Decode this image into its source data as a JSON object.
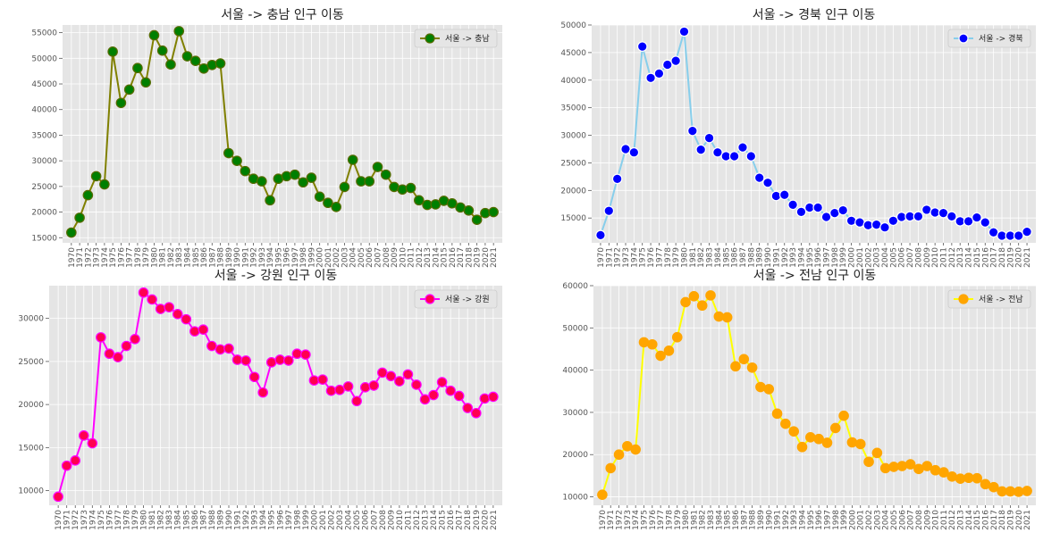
{
  "chart_data": [
    {
      "type": "line",
      "title": "서울 -> 충남 인구 이동",
      "legend": {
        "label": "서울 -> 충남",
        "placement": "top-right"
      },
      "line_color": "#808000",
      "marker_face": "#007f00",
      "marker_edge": "#556b00",
      "grid": true,
      "ylim": [
        14000,
        56500
      ],
      "yticks": [
        15000,
        20000,
        25000,
        30000,
        35000,
        40000,
        45000,
        50000,
        55000
      ],
      "x": [
        "1970",
        "1971",
        "1972",
        "1973",
        "1974",
        "1975",
        "1976",
        "1977",
        "1978",
        "1979",
        "1980",
        "1981",
        "1982",
        "1983",
        "1984",
        "1985",
        "1986",
        "1987",
        "1988",
        "1989",
        "1990",
        "1991",
        "1992",
        "1993",
        "1994",
        "1995",
        "1996",
        "1997",
        "1998",
        "1999",
        "2000",
        "2001",
        "2002",
        "2003",
        "2004",
        "2005",
        "2006",
        "2007",
        "2008",
        "2009",
        "2010",
        "2011",
        "2012",
        "2013",
        "2014",
        "2015",
        "2016",
        "2017",
        "2018",
        "2019",
        "2020",
        "2021"
      ],
      "values": [
        16000,
        18900,
        23300,
        27000,
        25400,
        51300,
        41300,
        43900,
        48100,
        45300,
        54500,
        51500,
        48800,
        55300,
        50400,
        49500,
        48000,
        48700,
        49000,
        31500,
        30000,
        28000,
        26500,
        26000,
        22300,
        26500,
        27000,
        27300,
        25800,
        26700,
        23000,
        21800,
        21000,
        24900,
        30200,
        26000,
        26000,
        28800,
        27300,
        24900,
        24400,
        24700,
        22300,
        21400,
        21500,
        22200,
        21700,
        20900,
        20300,
        18500,
        19800,
        20000
      ]
    },
    {
      "type": "line",
      "title": "서울 -> 경북 인구 이동",
      "legend": {
        "label": "서울 -> 경북",
        "placement": "top-right"
      },
      "line_color": "#87ceeb",
      "marker_face": "#0000ff",
      "marker_edge": "#ffffff",
      "grid": true,
      "ylim": [
        10500,
        50000
      ],
      "yticks": [
        15000,
        20000,
        25000,
        30000,
        35000,
        40000,
        45000,
        50000
      ],
      "x": [
        "1970",
        "1971",
        "1972",
        "1973",
        "1974",
        "1975",
        "1976",
        "1977",
        "1978",
        "1979",
        "1980",
        "1981",
        "1982",
        "1983",
        "1984",
        "1985",
        "1986",
        "1987",
        "1988",
        "1989",
        "1990",
        "1991",
        "1992",
        "1993",
        "1994",
        "1995",
        "1996",
        "1997",
        "1998",
        "1999",
        "2000",
        "2001",
        "2002",
        "2003",
        "2004",
        "2005",
        "2006",
        "2007",
        "2008",
        "2009",
        "2010",
        "2011",
        "2012",
        "2013",
        "2014",
        "2015",
        "2016",
        "2017",
        "2018",
        "2019",
        "2020",
        "2021"
      ],
      "values": [
        11900,
        16300,
        22100,
        27500,
        26900,
        46100,
        40400,
        41200,
        42800,
        43500,
        48800,
        30800,
        27400,
        29500,
        26900,
        26200,
        26200,
        27800,
        26200,
        22300,
        21400,
        19000,
        19200,
        17400,
        16100,
        16900,
        16900,
        15200,
        15900,
        16400,
        14500,
        14200,
        13700,
        13800,
        13300,
        14500,
        15200,
        15300,
        15300,
        16500,
        16000,
        15900,
        15300,
        14400,
        14400,
        15100,
        14200,
        12400,
        11800,
        11800,
        11800,
        12500
      ]
    },
    {
      "type": "line",
      "title": "서울 -> 강원 인구 이동",
      "legend": {
        "label": "서울 -> 강원",
        "placement": "top-right"
      },
      "line_color": "#ff00ff",
      "marker_face": "#ff0050",
      "marker_edge": "#ff00ff",
      "grid": true,
      "ylim": [
        8300,
        33800
      ],
      "yticks": [
        10000,
        15000,
        20000,
        25000,
        30000
      ],
      "x": [
        "1970",
        "1971",
        "1972",
        "1973",
        "1974",
        "1975",
        "1976",
        "1977",
        "1978",
        "1979",
        "1980",
        "1981",
        "1982",
        "1983",
        "1984",
        "1985",
        "1986",
        "1987",
        "1988",
        "1989",
        "1990",
        "1991",
        "1992",
        "1993",
        "1994",
        "1995",
        "1996",
        "1997",
        "1998",
        "1999",
        "2000",
        "2001",
        "2002",
        "2003",
        "2004",
        "2005",
        "2006",
        "2007",
        "2008",
        "2009",
        "2010",
        "2011",
        "2012",
        "2013",
        "2014",
        "2015",
        "2016",
        "2017",
        "2018",
        "2019",
        "2020",
        "2021"
      ],
      "values": [
        9300,
        12900,
        13500,
        16400,
        15500,
        27800,
        25900,
        25500,
        26800,
        27600,
        33000,
        32200,
        31100,
        31300,
        30500,
        29900,
        28500,
        28700,
        26800,
        26400,
        26500,
        25200,
        25100,
        23200,
        21400,
        24900,
        25200,
        25100,
        25900,
        25800,
        22800,
        22900,
        21600,
        21700,
        22100,
        20400,
        22000,
        22200,
        23700,
        23300,
        22700,
        23500,
        22300,
        20600,
        21100,
        22600,
        21600,
        21000,
        19600,
        19000,
        20700,
        20900
      ]
    },
    {
      "type": "line",
      "title": "서울 -> 전남 인구 이동",
      "legend": {
        "label": "서울 -> 전남",
        "placement": "top-right"
      },
      "line_color": "#ffff00",
      "marker_face": "#ffa500",
      "marker_edge": "#ffa500",
      "grid": true,
      "ylim": [
        8000,
        60000
      ],
      "yticks": [
        10000,
        20000,
        30000,
        40000,
        50000,
        60000
      ],
      "x": [
        "1970",
        "1971",
        "1972",
        "1973",
        "1974",
        "1975",
        "1976",
        "1977",
        "1978",
        "1979",
        "1980",
        "1981",
        "1982",
        "1983",
        "1984",
        "1985",
        "1986",
        "1987",
        "1988",
        "1989",
        "1990",
        "1991",
        "1992",
        "1993",
        "1994",
        "1995",
        "1996",
        "1997",
        "1998",
        "1999",
        "2000",
        "2001",
        "2002",
        "2003",
        "2004",
        "2005",
        "2006",
        "2007",
        "2008",
        "2009",
        "2010",
        "2011",
        "2012",
        "2013",
        "2014",
        "2015",
        "2016",
        "2017",
        "2018",
        "2019",
        "2020",
        "2021"
      ],
      "values": [
        10500,
        16800,
        20000,
        22000,
        21200,
        46600,
        46100,
        43400,
        44600,
        47800,
        56100,
        57500,
        55300,
        57700,
        52700,
        52500,
        40900,
        42600,
        40600,
        36000,
        35500,
        29700,
        27300,
        25500,
        21800,
        24100,
        23700,
        22800,
        26300,
        29200,
        22900,
        22500,
        18300,
        20400,
        16800,
        17100,
        17300,
        17700,
        16600,
        17300,
        16300,
        15800,
        14800,
        14300,
        14500,
        14400,
        13000,
        12300,
        11300,
        11300,
        11200,
        11400
      ]
    }
  ]
}
